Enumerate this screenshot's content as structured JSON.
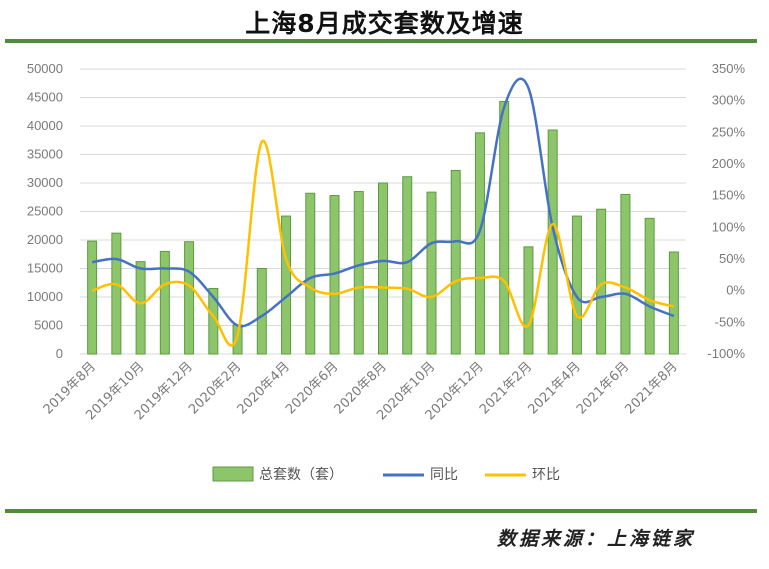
{
  "title": "上海8月成交套数及增速",
  "source": "数据来源：上海链家",
  "chart_data": {
    "type": "bar",
    "categories": [
      "2019年8月",
      "2019年9月",
      "2019年10月",
      "2019年11月",
      "2019年12月",
      "2020年1月",
      "2020年2月",
      "2020年3月",
      "2020年4月",
      "2020年5月",
      "2020年6月",
      "2020年7月",
      "2020年8月",
      "2020年9月",
      "2020年10月",
      "2020年11月",
      "2020年12月",
      "2021年1月",
      "2021年2月",
      "2021年3月",
      "2021年4月",
      "2021年5月",
      "2021年6月",
      "2021年7月",
      "2021年8月"
    ],
    "x_tick_labels": [
      "2019年8月",
      "2019年10月",
      "2019年12月",
      "2020年2月",
      "2020年4月",
      "2020年6月",
      "2020年8月",
      "2020年10月",
      "2020年12月",
      "2021年2月",
      "2021年4月",
      "2021年6月",
      "2021年8月"
    ],
    "series": [
      {
        "name": "总套数（套）",
        "type": "bar",
        "axis": "left",
        "color": "#8cc56a",
        "values": [
          19800,
          21200,
          16200,
          18000,
          19700,
          11500,
          5100,
          15000,
          24200,
          28200,
          27800,
          28500,
          30000,
          31100,
          28400,
          32200,
          38800,
          44300,
          18800,
          39300,
          24200,
          25400,
          28000,
          23800,
          17900
        ]
      },
      {
        "name": "同比",
        "type": "line",
        "axis": "right",
        "color": "#4472c4",
        "values": [
          45,
          50,
          35,
          35,
          30,
          -10,
          -55,
          -40,
          -10,
          20,
          27,
          40,
          47,
          45,
          75,
          78,
          95,
          290,
          320,
          100,
          -10,
          -10,
          -5,
          -25,
          -40
        ]
      },
      {
        "name": "环比",
        "type": "line",
        "axis": "right",
        "color": "#ffc000",
        "values": [
          0,
          10,
          -20,
          10,
          8,
          -40,
          -70,
          235,
          50,
          5,
          -5,
          5,
          5,
          3,
          -10,
          15,
          20,
          15,
          -55,
          105,
          -40,
          10,
          5,
          -15,
          -25
        ]
      }
    ],
    "y_left": {
      "min": 0,
      "max": 50000,
      "step": 5000
    },
    "y_right": {
      "min": -100,
      "max": 350,
      "step": 50
    },
    "grid": true,
    "legend_position": "bottom"
  }
}
